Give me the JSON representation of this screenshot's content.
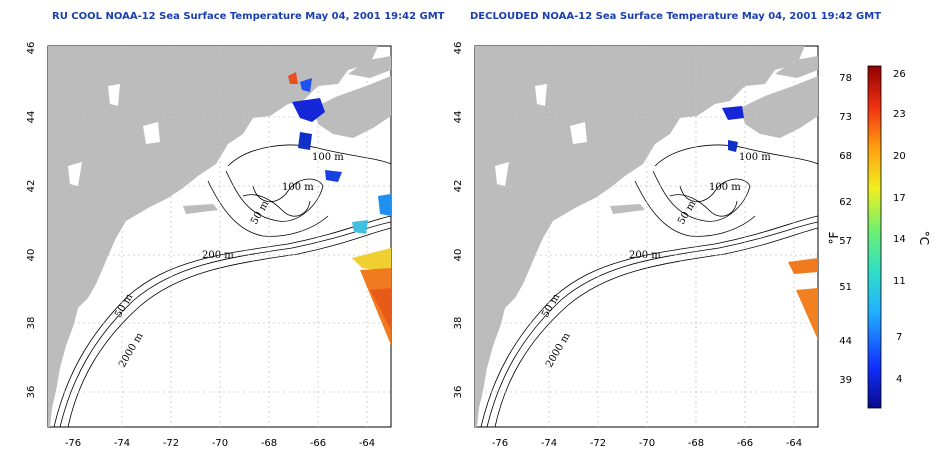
{
  "maps": [
    {
      "title": "RU COOL NOAA-12 Sea Surface Temperature May 04, 2001 19:42 GMT",
      "contour_labels": [
        "100 m",
        "100 m",
        "50 m",
        "200 m",
        "50 m",
        "2000 m"
      ]
    },
    {
      "title": "DECLOUDED NOAA-12 Sea Surface Temperature May 04, 2001 19:42 GMT",
      "contour_labels": [
        "100 m",
        "100 m",
        "50 m",
        "200 m",
        "50 m",
        "2000 m"
      ]
    }
  ],
  "axes": {
    "longitude_ticks": [
      "-76",
      "-74",
      "-72",
      "-70",
      "-68",
      "-66",
      "-64"
    ],
    "latitude_ticks": [
      "46",
      "44",
      "42",
      "40",
      "38",
      "36"
    ]
  },
  "colorbar": {
    "fahrenheit_label": "°F",
    "celsius_label": "°C",
    "fahrenheit_ticks": [
      "78",
      "73",
      "68",
      "62",
      "57",
      "51",
      "44",
      "39"
    ],
    "celsius_ticks": [
      "26",
      "23",
      "20",
      "17",
      "14",
      "11",
      "7",
      "4"
    ]
  },
  "colors": {
    "land": "#bcbcbc",
    "ocean": "#ffffff",
    "title": "#1a3fae",
    "cold": "#1020c8",
    "warm": "#f06a1a"
  }
}
